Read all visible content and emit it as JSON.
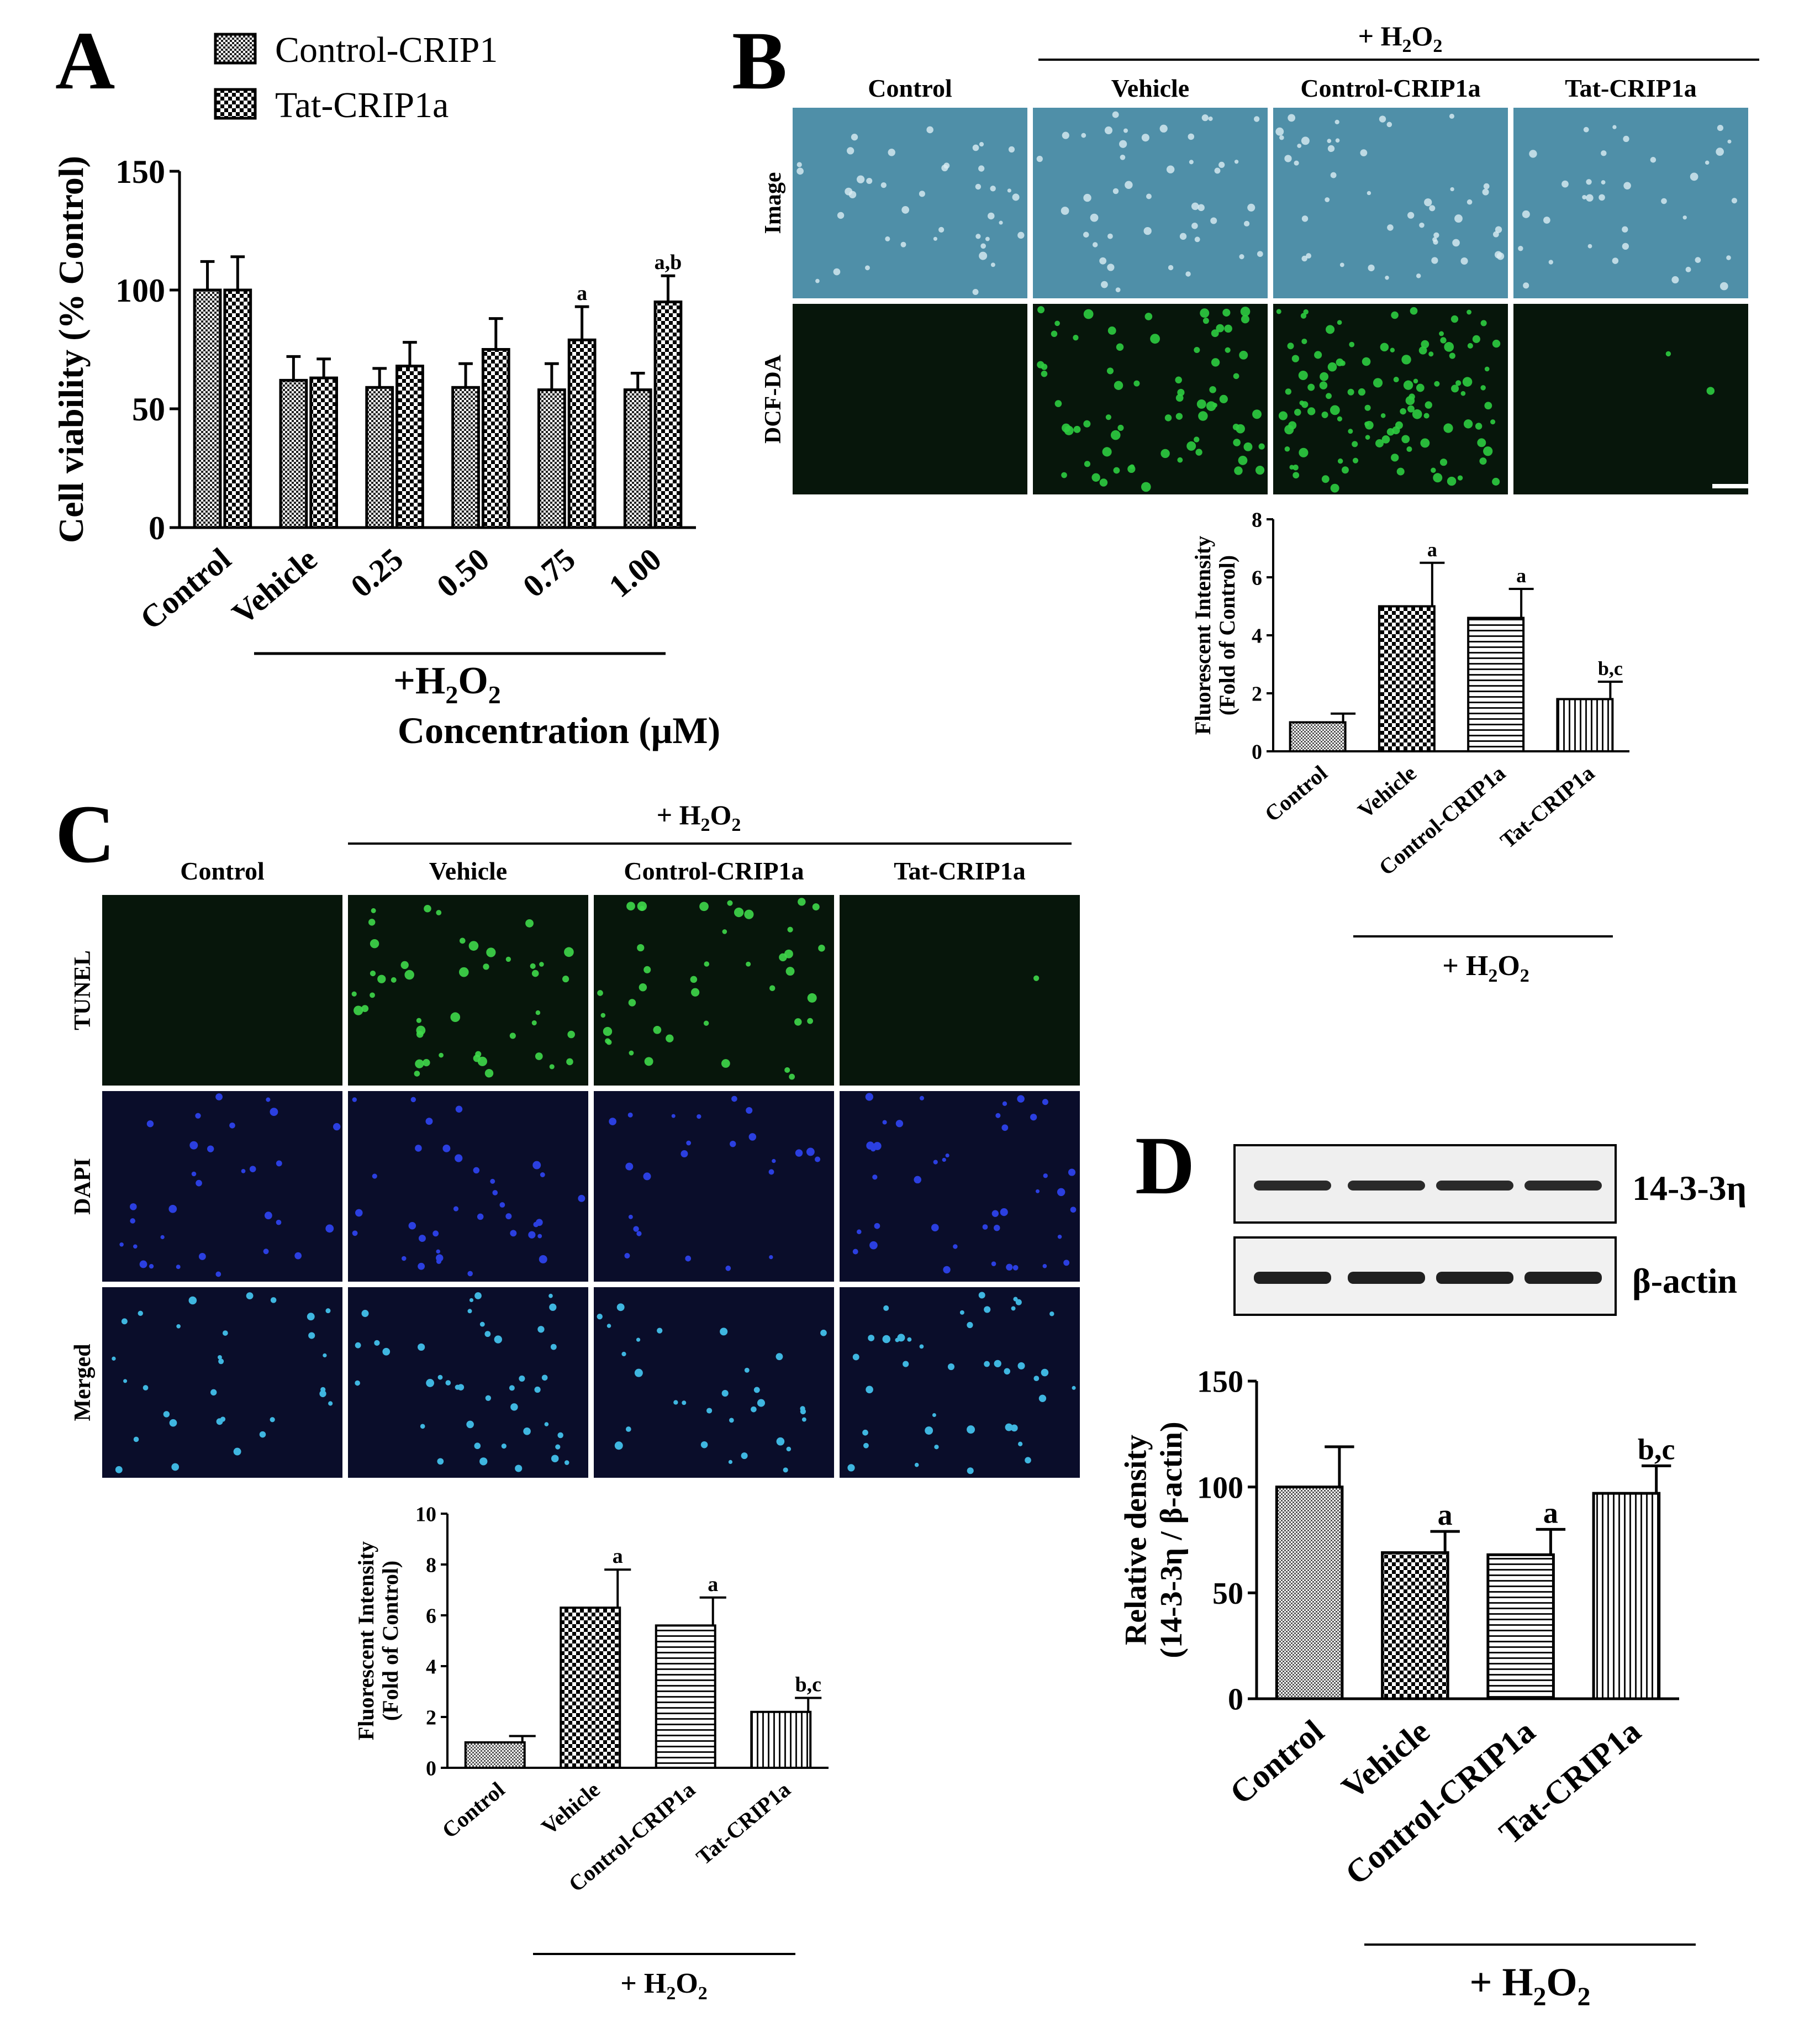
{
  "panels": {
    "A": "A",
    "B": "B",
    "C": "C",
    "D": "D"
  },
  "colors": {
    "dct_green": "#2ecc40",
    "tunel_green": "#3fd84a",
    "dapi_blue": "#2b3fe0",
    "merged_cyan": "#3fb6e0",
    "image_bg": "#4f8fa8",
    "fluor_bg": "#07160b",
    "dapi_bg": "#0a0d2a"
  },
  "panelA": {
    "legend": [
      "Control-CRIP1",
      "Tat-CRIP1a"
    ],
    "group_label": "+H2O2",
    "xlabel": "Concentration (μM)"
  },
  "panelB": {
    "group_label": "+ H2O2",
    "columns": [
      "Control",
      "Vehicle",
      "Control-CRIP1a",
      "Tat-CRIP1a"
    ],
    "rows": [
      "Image",
      "DCF-DA"
    ],
    "chart_group_label": "+ H2O2"
  },
  "panelC": {
    "group_label": "+ H2O2",
    "columns": [
      "Control",
      "Vehicle",
      "Control-CRIP1a",
      "Tat-CRIP1a"
    ],
    "rows": [
      "TUNEL",
      "DAPI",
      "Merged"
    ],
    "chart_group_label": "+ H2O2"
  },
  "panelD": {
    "blot_labels": [
      "14-3-3η",
      "β-actin"
    ],
    "group_label": "+ H2O2"
  },
  "chart_data": [
    {
      "id": "A",
      "type": "bar",
      "categories": [
        "Control",
        "Vehicle",
        "0.25",
        "0.50",
        "0.75",
        "1.00"
      ],
      "series": [
        {
          "name": "Control-CRIP1",
          "values": [
            100,
            62,
            59,
            59,
            58,
            58
          ],
          "errors": [
            12,
            10,
            8,
            10,
            11,
            7
          ]
        },
        {
          "name": "Tat-CRIP1a",
          "values": [
            100,
            63,
            68,
            75,
            79,
            95
          ],
          "errors": [
            14,
            8,
            10,
            13,
            14,
            11
          ]
        }
      ],
      "annotations": [
        "",
        "",
        "",
        "",
        "a",
        "a,b"
      ],
      "xlabel": "Concentration (μM)",
      "ylabel": "Cell viability (% Control)",
      "ylim": [
        0,
        150
      ],
      "yticks": [
        0,
        50,
        100,
        150
      ],
      "legend_position": "top-left",
      "grid": false
    },
    {
      "id": "B",
      "type": "bar",
      "categories": [
        "Control",
        "Vehicle",
        "Control-CRIP1a",
        "Tat-CRIP1a"
      ],
      "values": [
        1.0,
        5.0,
        4.6,
        1.8
      ],
      "errors": [
        0.3,
        1.5,
        1.0,
        0.6
      ],
      "annotations": [
        "",
        "a",
        "a",
        "b,c"
      ],
      "ylabel": "Fluorescent Intensity (Fold of Control)",
      "ylim": [
        0,
        8
      ],
      "yticks": [
        0,
        2,
        4,
        6,
        8
      ],
      "grid": false
    },
    {
      "id": "C",
      "type": "bar",
      "categories": [
        "Control",
        "Vehicle",
        "Control-CRIP1a",
        "Tat-CRIP1a"
      ],
      "values": [
        1.0,
        6.3,
        5.6,
        2.2
      ],
      "errors": [
        0.25,
        1.5,
        1.1,
        0.55
      ],
      "annotations": [
        "",
        "a",
        "a",
        "b,c"
      ],
      "ylabel": "Fluorescent Intensity (Fold of Control)",
      "ylim": [
        0,
        10
      ],
      "yticks": [
        0,
        2,
        4,
        6,
        8,
        10
      ],
      "grid": false
    },
    {
      "id": "D",
      "type": "bar",
      "categories": [
        "Control",
        "Vehicle",
        "Control-CRIP1a",
        "Tat-CRIP1a"
      ],
      "values": [
        100,
        69,
        68,
        97
      ],
      "errors": [
        19,
        10,
        12,
        13
      ],
      "annotations": [
        "",
        "a",
        "a",
        "b,c"
      ],
      "ylabel": "Relative density (14-3-3η / β-actin)",
      "ylim": [
        0,
        150
      ],
      "yticks": [
        0,
        50,
        100,
        150
      ],
      "grid": false
    }
  ]
}
